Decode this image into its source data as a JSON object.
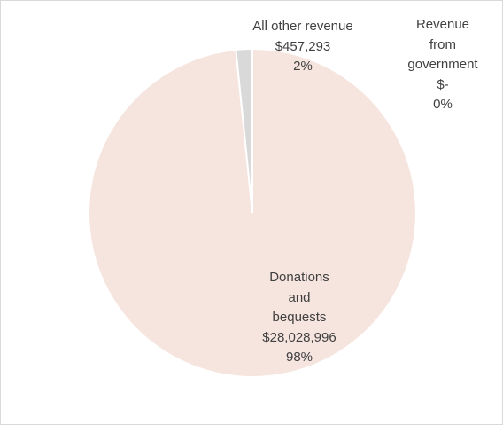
{
  "chart_data": {
    "type": "pie",
    "title": "",
    "start_angle_deg": 0,
    "direction": "clockwise",
    "slices": [
      {
        "label_lines": [
          "Donations",
          "and",
          "bequests"
        ],
        "value": 28028996,
        "value_text": "$28,028,996",
        "percent_text": "98%",
        "color": "#f6e5df"
      },
      {
        "label_lines": [
          "Revenue",
          "from",
          "government"
        ],
        "value": 0,
        "value_text": "$-",
        "percent_text": "0%",
        "color": "#bfbfbf"
      },
      {
        "label_lines": [
          "All other revenue"
        ],
        "value": 457293,
        "value_text": "$457,293",
        "percent_text": "2%",
        "color": "#d9d9d9"
      }
    ],
    "slice_border_color": "#ffffff",
    "text_color": "#404040"
  }
}
